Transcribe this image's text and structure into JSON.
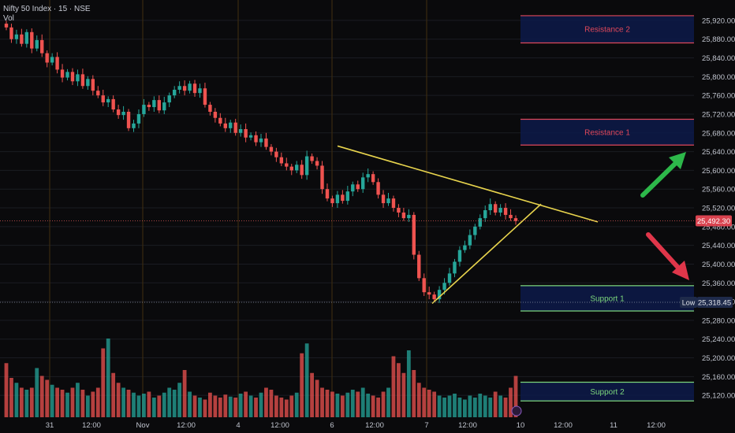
{
  "header": {
    "symbol_line": "Nifty 50 Index · 15 · NSE",
    "volume_label": "Vol"
  },
  "colors": {
    "background": "#0a0a0c",
    "up": "#26a69a",
    "down": "#ef5350",
    "resistance_band": "#0d1a4a",
    "resistance_line": "#e0485a",
    "support_line": "#7cd67c",
    "trendline": "#e8d44d",
    "up_arrow": "#2db84a",
    "down_arrow": "#e0364a",
    "grid": "#1a1c22",
    "session_line": "#3a2a10"
  },
  "chart_data": {
    "type": "candlestick",
    "title": "Nifty 50 Index · 15 · NSE",
    "ylim": [
      25090,
      25940
    ],
    "y_ticks": [
      "25,920.00",
      "25,880.00",
      "25,840.00",
      "25,800.00",
      "25,760.00",
      "25,720.00",
      "25,680.00",
      "25,640.00",
      "25,600.00",
      "25,560.00",
      "25,520.00",
      "25,480.00",
      "25,440.00",
      "25,400.00",
      "25,360.00",
      "25,320.00",
      "25,280.00",
      "25,240.00",
      "25,200.00",
      "25,160.00",
      "25,120.00"
    ],
    "x_ticks": [
      "31",
      "12:00",
      "Nov",
      "12:00",
      "4",
      "12:00",
      "6",
      "12:00",
      "7",
      "12:00",
      "10",
      "12:00",
      "11",
      "12:00"
    ],
    "last_price_label": "25,492.30",
    "last_price": 25492.3,
    "low_label": "Low",
    "low_price_label": "25,318.45",
    "low_price": 25318.45,
    "zones": [
      {
        "label": "Resistance 2",
        "low": 25872,
        "high": 25930,
        "kind": "resistance"
      },
      {
        "label": "Resistance 1",
        "low": 25654,
        "high": 25709,
        "kind": "resistance"
      },
      {
        "label": "Support 1",
        "low": 25300,
        "high": 25354,
        "kind": "support"
      },
      {
        "label": "Support 2",
        "low": 25108,
        "high": 25148,
        "kind": "support"
      }
    ],
    "trendlines": [
      {
        "name": "upper",
        "from": [
          0,
          25652
        ],
        "to": [
          1,
          25490
        ]
      },
      {
        "name": "lower",
        "from": [
          0,
          25316
        ],
        "to": [
          1,
          25528
        ]
      }
    ],
    "closes": [
      25905,
      25880,
      25890,
      25870,
      25895,
      25860,
      25878,
      25850,
      25830,
      25842,
      25815,
      25798,
      25810,
      25790,
      25805,
      25780,
      25795,
      25770,
      25760,
      25745,
      25752,
      25730,
      25718,
      25725,
      25690,
      25700,
      25720,
      25740,
      25735,
      25750,
      25728,
      25745,
      25760,
      25772,
      25780,
      25770,
      25785,
      25765,
      25775,
      25740,
      25725,
      25712,
      25700,
      25690,
      25702,
      25680,
      25688,
      25670,
      25675,
      25660,
      25668,
      25650,
      25640,
      25628,
      25615,
      25608,
      25600,
      25612,
      25590,
      25630,
      25620,
      25610,
      25560,
      25540,
      25530,
      25548,
      25535,
      25555,
      25570,
      25560,
      25585,
      25592,
      25575,
      25548,
      25530,
      25540,
      25520,
      25510,
      25498,
      25505,
      25420,
      25370,
      25340,
      25335,
      25325,
      25345,
      25360,
      25380,
      25405,
      25430,
      25440,
      25462,
      25480,
      25498,
      25515,
      25528,
      25510,
      25520,
      25505,
      25498,
      25492
    ],
    "volumes": [
      0.55,
      0.4,
      0.35,
      0.3,
      0.28,
      0.3,
      0.5,
      0.42,
      0.38,
      0.33,
      0.3,
      0.28,
      0.25,
      0.3,
      0.35,
      0.28,
      0.22,
      0.26,
      0.3,
      0.7,
      0.8,
      0.45,
      0.35,
      0.3,
      0.28,
      0.25,
      0.22,
      0.24,
      0.26,
      0.2,
      0.22,
      0.25,
      0.3,
      0.28,
      0.35,
      0.48,
      0.26,
      0.22,
      0.2,
      0.18,
      0.25,
      0.22,
      0.2,
      0.23,
      0.21,
      0.2,
      0.24,
      0.26,
      0.22,
      0.2,
      0.25,
      0.3,
      0.28,
      0.22,
      0.2,
      0.18,
      0.22,
      0.25,
      0.65,
      0.75,
      0.45,
      0.38,
      0.3,
      0.28,
      0.26,
      0.24,
      0.22,
      0.25,
      0.28,
      0.26,
      0.3,
      0.24,
      0.22,
      0.2,
      0.26,
      0.3,
      0.62,
      0.55,
      0.45,
      0.68,
      0.48,
      0.35,
      0.3,
      0.28,
      0.26,
      0.22,
      0.2,
      0.22,
      0.24,
      0.2,
      0.18,
      0.22,
      0.2,
      0.24,
      0.22,
      0.2,
      0.26,
      0.22,
      0.2,
      0.3,
      0.42
    ],
    "arrows": [
      {
        "direction": "up",
        "color": "#2db84a"
      },
      {
        "direction": "down",
        "color": "#e0364a"
      }
    ]
  }
}
